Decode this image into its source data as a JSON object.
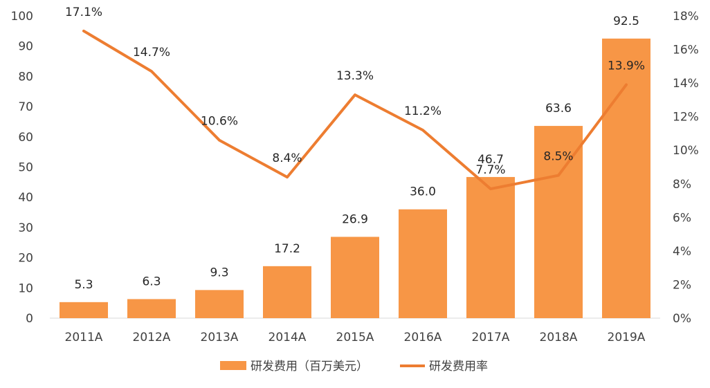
{
  "chart_data": {
    "type": "bar+line",
    "categories": [
      "2011A",
      "2012A",
      "2013A",
      "2014A",
      "2015A",
      "2016A",
      "2017A",
      "2018A",
      "2019A"
    ],
    "series": [
      {
        "name": "研发费用（百万美元）",
        "type": "bar",
        "axis": "left",
        "values": [
          5.3,
          6.3,
          9.3,
          17.2,
          26.9,
          36.0,
          46.7,
          63.6,
          92.5
        ],
        "labels": [
          "5.3",
          "6.3",
          "9.3",
          "17.2",
          "26.9",
          "36.0",
          "46.7",
          "63.6",
          "92.5"
        ],
        "color": "#F79646"
      },
      {
        "name": "研发费用率",
        "type": "line",
        "axis": "right",
        "values": [
          17.1,
          14.7,
          10.6,
          8.4,
          13.3,
          11.2,
          7.7,
          8.5,
          13.9
        ],
        "labels": [
          "17.1%",
          "14.7%",
          "10.6%",
          "8.4%",
          "13.3%",
          "11.2%",
          "7.7%",
          "8.5%",
          "13.9%"
        ],
        "color": "#ED7D31"
      }
    ],
    "y_left": {
      "min": 0,
      "max": 100,
      "ticks": [
        "0",
        "10",
        "20",
        "30",
        "40",
        "50",
        "60",
        "70",
        "80",
        "90",
        "100"
      ]
    },
    "y_right": {
      "min": 0,
      "max": 18,
      "ticks": [
        "0%",
        "2%",
        "4%",
        "6%",
        "8%",
        "10%",
        "12%",
        "14%",
        "16%",
        "18%"
      ]
    },
    "grid": false,
    "legend": "bottom-center"
  }
}
